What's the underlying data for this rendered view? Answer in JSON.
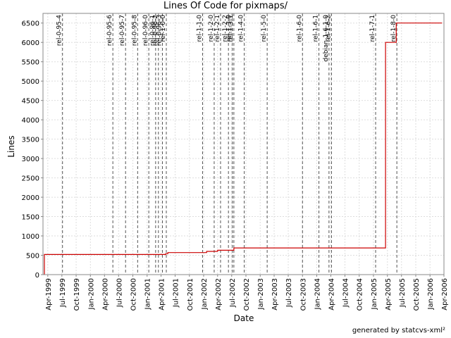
{
  "chart_data": {
    "type": "line",
    "title": "Lines Of Code for pixmaps/",
    "xlabel": "Date",
    "ylabel": "Lines",
    "footer": "generated by statcvs-xml²",
    "grid": true,
    "xlim": [
      "1999-03-01",
      "2006-04-01"
    ],
    "ylim": [
      0,
      6750
    ],
    "yticks": [
      0,
      500,
      1000,
      1500,
      2000,
      2500,
      3000,
      3500,
      4000,
      4500,
      5000,
      5500,
      6000,
      6500
    ],
    "xticks": [
      {
        "date": "1999-04-01",
        "label": "Apr-1999"
      },
      {
        "date": "1999-07-01",
        "label": "Jul-1999"
      },
      {
        "date": "1999-10-01",
        "label": "Oct-1999"
      },
      {
        "date": "2000-01-01",
        "label": "Jan-2000"
      },
      {
        "date": "2000-04-01",
        "label": "Apr-2000"
      },
      {
        "date": "2000-07-01",
        "label": "Jul-2000"
      },
      {
        "date": "2000-10-01",
        "label": "Oct-2000"
      },
      {
        "date": "2001-01-01",
        "label": "Jan-2001"
      },
      {
        "date": "2001-04-01",
        "label": "Apr-2001"
      },
      {
        "date": "2001-07-01",
        "label": "Jul-2001"
      },
      {
        "date": "2001-10-01",
        "label": "Oct-2001"
      },
      {
        "date": "2002-01-01",
        "label": "Jan-2002"
      },
      {
        "date": "2002-04-01",
        "label": "Apr-2002"
      },
      {
        "date": "2002-07-01",
        "label": "Jul-2002"
      },
      {
        "date": "2002-10-01",
        "label": "Oct-2002"
      },
      {
        "date": "2003-01-01",
        "label": "Jan-2003"
      },
      {
        "date": "2003-04-01",
        "label": "Apr-2003"
      },
      {
        "date": "2003-07-01",
        "label": "Jul-2003"
      },
      {
        "date": "2003-10-01",
        "label": "Oct-2003"
      },
      {
        "date": "2004-01-01",
        "label": "Jan-2004"
      },
      {
        "date": "2004-04-01",
        "label": "Apr-2004"
      },
      {
        "date": "2004-07-01",
        "label": "Jul-2004"
      },
      {
        "date": "2004-10-01",
        "label": "Oct-2004"
      },
      {
        "date": "2005-01-01",
        "label": "Jan-2005"
      },
      {
        "date": "2005-04-01",
        "label": "Apr-2005"
      },
      {
        "date": "2005-07-01",
        "label": "Jul-2005"
      },
      {
        "date": "2005-10-01",
        "label": "Oct-2005"
      },
      {
        "date": "2006-01-01",
        "label": "Jan-2006"
      },
      {
        "date": "2006-04-01",
        "label": "Apr-2006"
      }
    ],
    "series": [
      {
        "color": "#cc0000",
        "points": [
          [
            "1999-03-10",
            0
          ],
          [
            "1999-03-10",
            520
          ],
          [
            "2001-05-01",
            520
          ],
          [
            "2001-05-01",
            540
          ],
          [
            "2001-05-15",
            540
          ],
          [
            "2001-05-15",
            570
          ],
          [
            "2002-01-20",
            570
          ],
          [
            "2002-01-20",
            600
          ],
          [
            "2002-04-01",
            600
          ],
          [
            "2002-04-01",
            630
          ],
          [
            "2002-07-15",
            630
          ],
          [
            "2002-07-15",
            690
          ],
          [
            "2005-03-20",
            690
          ],
          [
            "2005-03-20",
            6000
          ],
          [
            "2005-05-28",
            6000
          ],
          [
            "2005-05-28",
            6500
          ],
          [
            "2006-03-20",
            6500
          ]
        ]
      }
    ],
    "markers": [
      {
        "date": "1999-07-05",
        "label": "rel-0-95-4"
      },
      {
        "date": "2000-05-25",
        "label": "rel-0-95-6"
      },
      {
        "date": "2000-08-15",
        "label": "rel-0-95-7"
      },
      {
        "date": "2000-11-01",
        "label": "rel-0-95-8"
      },
      {
        "date": "2001-01-12",
        "label": "rel-0-96-0"
      },
      {
        "date": "2001-02-25",
        "label": "rel-0-96-1"
      },
      {
        "date": "2001-03-15",
        "label": "rel-0-96-2"
      },
      {
        "date": "2001-04-10",
        "label": "rel-0-96-3"
      },
      {
        "date": "2001-05-05",
        "label": "rel-1-0-0"
      },
      {
        "date": "2001-12-25",
        "label": "rel-1-1-0"
      },
      {
        "date": "2002-03-10",
        "label": "rel-1-2-0"
      },
      {
        "date": "2002-04-20",
        "label": "rel-1-2-1"
      },
      {
        "date": "2002-06-10",
        "label": "rel-1-2-2"
      },
      {
        "date": "2002-07-05",
        "label": "rel-1-3-0"
      },
      {
        "date": "2002-07-15",
        "label": "rel-1-3-1"
      },
      {
        "date": "2002-09-20",
        "label": "rel-1-4-0"
      },
      {
        "date": "2003-02-15",
        "label": "rel-1-5-0"
      },
      {
        "date": "2003-10-01",
        "label": "rel-1-6-0"
      },
      {
        "date": "2004-01-15",
        "label": "rel-1-6-1"
      },
      {
        "date": "2004-03-20",
        "label": "debian-1-6-1-0"
      },
      {
        "date": "2004-04-05",
        "label": "rel-1-6-2"
      },
      {
        "date": "2005-01-15",
        "label": "rel-1-7-1"
      },
      {
        "date": "2005-06-01",
        "label": "rel-1-8-0"
      }
    ]
  },
  "colors": {
    "line": "#cc0000",
    "grid": "#dddddd",
    "marker": "#555555",
    "axis": "#888888"
  }
}
